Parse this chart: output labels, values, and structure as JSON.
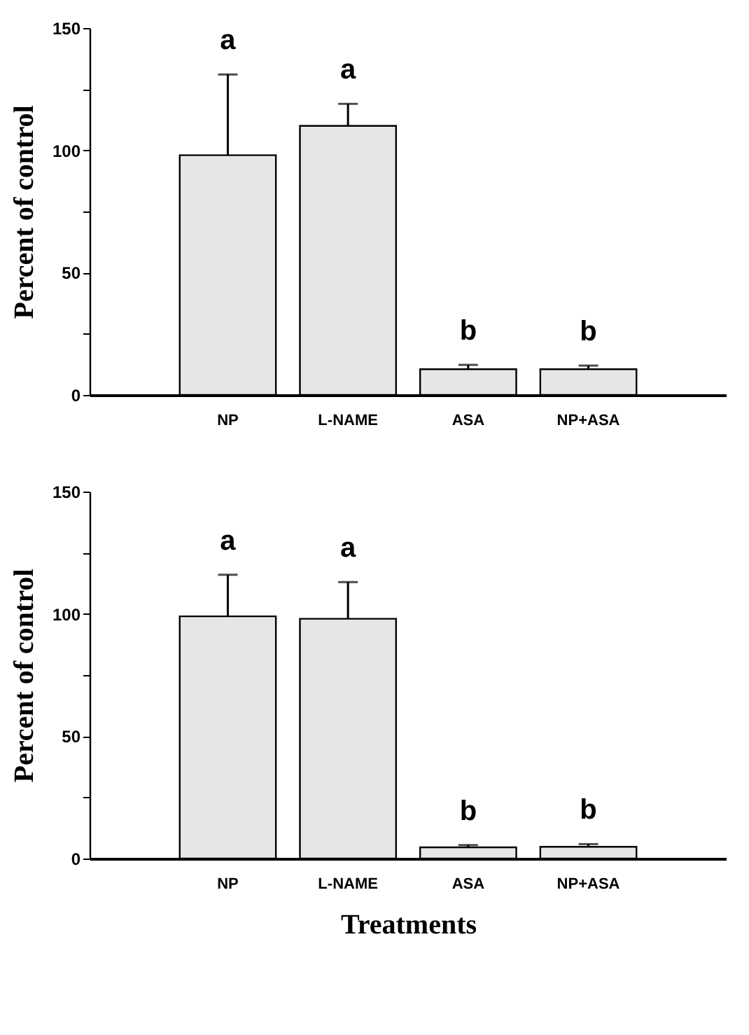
{
  "chart_data": [
    {
      "type": "bar",
      "categories": [
        "NP",
        "L-NAME",
        "ASA",
        "NP+ASA"
      ],
      "values": [
        98,
        110,
        10.5,
        10.5
      ],
      "errors": [
        [
          98,
          131
        ],
        [
          110,
          119
        ],
        [
          10.5,
          12.3
        ],
        [
          10.5,
          12
        ]
      ],
      "color": "#e6e6e6",
      "ylabel": "Percent of control",
      "ylim": [
        0,
        150
      ],
      "yticks": [
        0,
        {
          "value": 25,
          "label": null
        },
        50,
        {
          "value": 75,
          "label": null
        },
        100,
        {
          "value": 125,
          "label": null
        },
        150
      ],
      "annotations": [
        "a",
        "a",
        "b",
        "b"
      ]
    },
    {
      "type": "bar",
      "categories": [
        "NP",
        "L-NAME",
        "ASA",
        "NP+ASA"
      ],
      "values": [
        99,
        98,
        4.6,
        4.8
      ],
      "errors": [
        [
          99,
          116
        ],
        [
          98,
          113
        ],
        [
          4.6,
          5.5
        ],
        [
          4.8,
          5.9
        ]
      ],
      "color": "#e6e6e6",
      "xlabel": "Treatments",
      "ylabel": "Percent of control",
      "ylim": [
        0,
        150
      ],
      "yticks": [
        0,
        {
          "value": 25,
          "label": null
        },
        50,
        {
          "value": 75,
          "label": null
        },
        100,
        {
          "value": 125,
          "label": null
        },
        150
      ],
      "annotations": [
        "a",
        "a",
        "b",
        "b"
      ]
    }
  ]
}
